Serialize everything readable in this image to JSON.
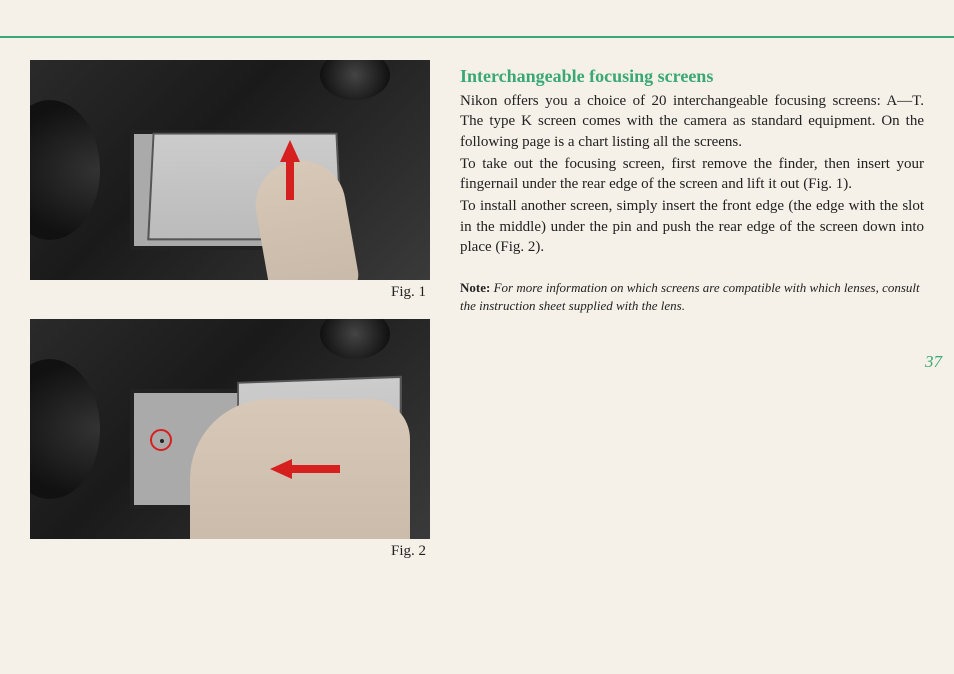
{
  "rule_color": "#3aa876",
  "heading_color": "#3aa876",
  "page_bg": "#f5f1e8",
  "arrow_color": "#d62020",
  "figures": {
    "fig1": {
      "caption": "Fig. 1"
    },
    "fig2": {
      "caption": "Fig. 2"
    }
  },
  "heading": "Interchangeable focusing screens",
  "paragraphs": {
    "p1": "Nikon offers you a choice of 20 interchangeable focusing screens: A—T. The type K screen comes with the camera as standard equipment. On the following page is a chart listing all the screens.",
    "p2": "To take out the focusing screen, first remove the finder, then insert your fingernail under the rear edge of the screen and lift it out (Fig. 1).",
    "p3": "To install another screen, simply insert the front edge (the edge with the slot in the middle) under the pin and push the rear edge of the screen down into place (Fig. 2)."
  },
  "note": {
    "label": "Note:",
    "text": " For more information on which screens are compatible with which lenses, consult the instruction sheet supplied with the lens."
  },
  "page_number": "37",
  "typography": {
    "heading_fontsize": 18,
    "body_fontsize": 15,
    "note_fontsize": 13,
    "caption_fontsize": 15,
    "pagenum_fontsize": 17
  }
}
